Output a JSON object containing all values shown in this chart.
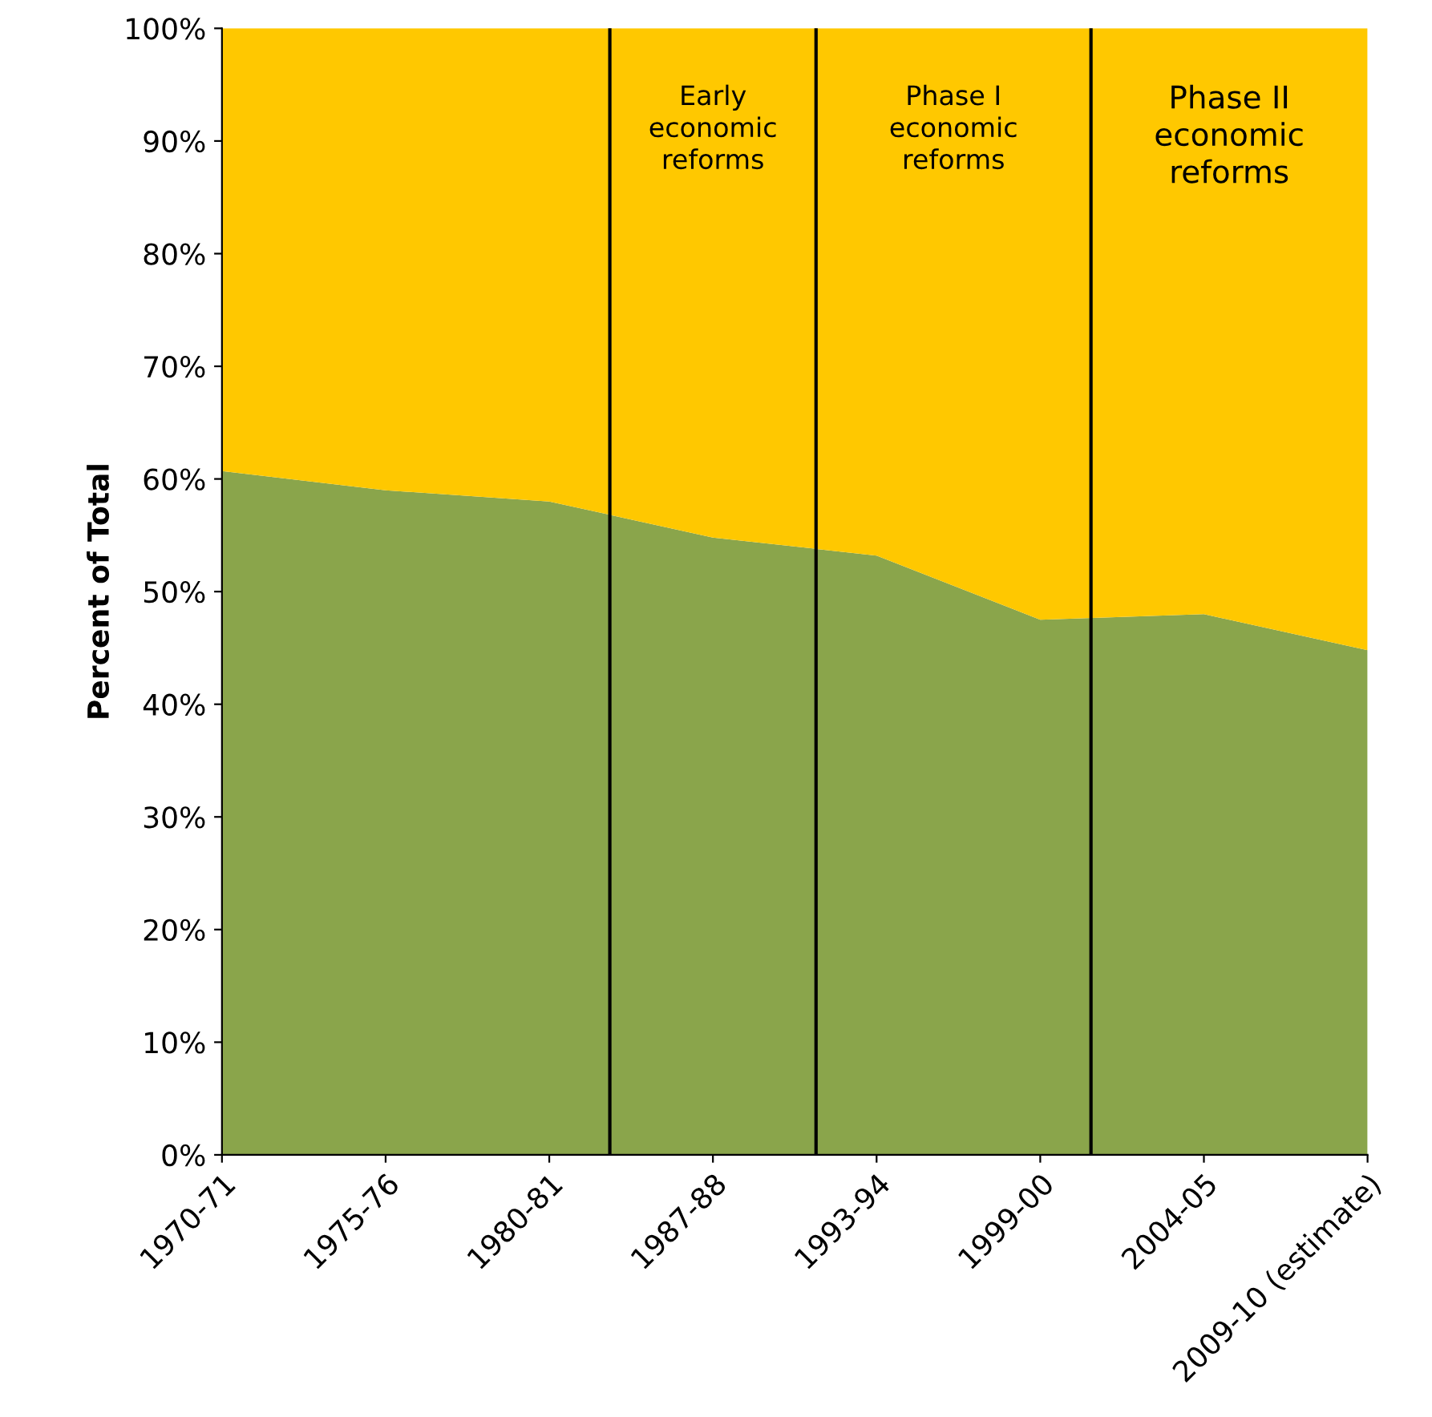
{
  "chart_data": {
    "type": "area",
    "stacked": true,
    "ylabel": "Percent of Total",
    "categories": [
      "1970-71",
      "1975-76",
      "1980-81",
      "1987-88",
      "1993-94",
      "1999-00",
      "2004-05",
      "2009-10 (estimate)"
    ],
    "series": [
      {
        "color": "#8aa54b",
        "values": [
          60.7,
          59,
          58,
          54.8,
          53.2,
          47.5,
          48,
          44.8
        ]
      },
      {
        "color": "#ffc800",
        "values": [
          39.3,
          41,
          42,
          45.2,
          46.8,
          52.5,
          52,
          55.2
        ]
      }
    ],
    "ylim": [
      0,
      100
    ],
    "yticks": [
      {
        "value": 0,
        "label": "0%"
      },
      {
        "value": 10,
        "label": "10%"
      },
      {
        "value": 20,
        "label": "20%"
      },
      {
        "value": 30,
        "label": "30%"
      },
      {
        "value": 40,
        "label": "40%"
      },
      {
        "value": 50,
        "label": "50%"
      },
      {
        "value": 60,
        "label": "60%"
      },
      {
        "value": 70,
        "label": "70%"
      },
      {
        "value": 80,
        "label": "80%"
      },
      {
        "value": 90,
        "label": "90%"
      },
      {
        "value": 100,
        "label": "100%"
      }
    ],
    "annotations": [
      "Early economic reforms",
      "Phase I economic reforms",
      "Phase II economic reforms"
    ],
    "grid": false,
    "legend": false
  }
}
